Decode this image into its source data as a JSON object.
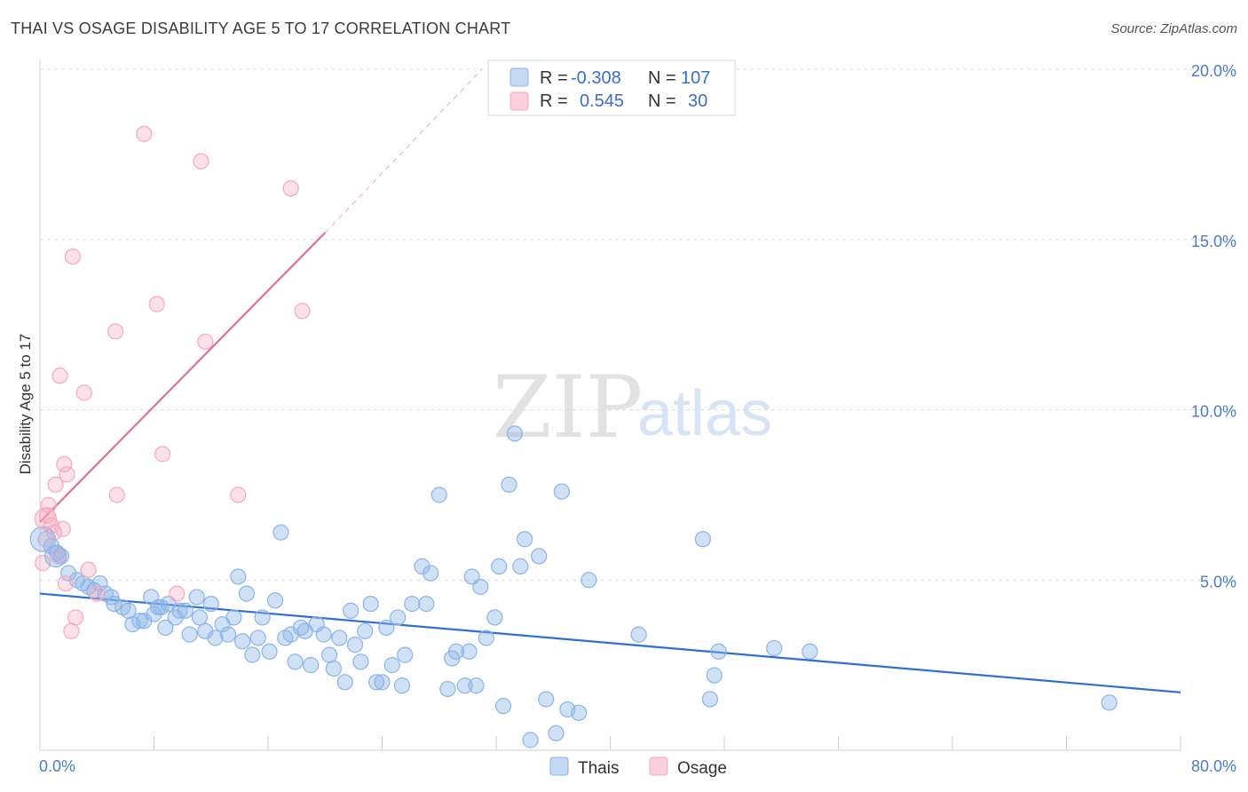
{
  "header": {
    "title": "THAI VS OSAGE DISABILITY AGE 5 TO 17 CORRELATION CHART",
    "source": "Source: ZipAtlas.com"
  },
  "watermark": {
    "zip": "ZIP",
    "atlas": "atlas"
  },
  "legend": {
    "r_label": "R =",
    "n_label": "N =",
    "items": [
      {
        "name": "Thais",
        "r": "-0.308",
        "n": "107",
        "color": "#8ab4e8"
      },
      {
        "name": "Osage",
        "r": "0.545",
        "n": "30",
        "color": "#f5a8c0"
      }
    ]
  },
  "chart_data": {
    "type": "scatter",
    "xlabel": "",
    "ylabel": "Disability Age 5 to 17",
    "xlim": [
      0,
      80
    ],
    "ylim": [
      0,
      20
    ],
    "x_tick_labels": [
      "0.0%",
      "80.0%"
    ],
    "y_ticks": [
      5,
      10,
      15,
      20
    ],
    "y_tick_labels": [
      "5.0%",
      "10.0%",
      "15.0%",
      "20.0%"
    ],
    "grid": true,
    "legend_position": "top-center",
    "series": [
      {
        "name": "Thais",
        "color": "#8ab4e8",
        "line_color": "#2f6fd1",
        "trend": {
          "x": [
            0,
            80
          ],
          "y": [
            4.6,
            1.7
          ]
        },
        "points": [
          [
            0.8,
            6.0
          ],
          [
            1.2,
            5.8
          ],
          [
            1.5,
            5.7
          ],
          [
            2.0,
            5.2
          ],
          [
            2.6,
            5.0
          ],
          [
            3.0,
            4.9
          ],
          [
            3.4,
            4.8
          ],
          [
            3.8,
            4.7
          ],
          [
            4.2,
            4.9
          ],
          [
            4.6,
            4.6
          ],
          [
            5.0,
            4.5
          ],
          [
            5.2,
            4.3
          ],
          [
            5.8,
            4.2
          ],
          [
            6.2,
            4.1
          ],
          [
            6.5,
            3.7
          ],
          [
            7.0,
            3.8
          ],
          [
            7.3,
            3.8
          ],
          [
            7.8,
            4.5
          ],
          [
            8.0,
            4.0
          ],
          [
            8.5,
            4.2
          ],
          [
            8.8,
            3.6
          ],
          [
            9.0,
            4.3
          ],
          [
            9.5,
            3.9
          ],
          [
            9.8,
            4.1
          ],
          [
            10.2,
            4.1
          ],
          [
            10.5,
            3.4
          ],
          [
            11.0,
            4.5
          ],
          [
            11.2,
            3.9
          ],
          [
            11.6,
            3.5
          ],
          [
            12.0,
            4.3
          ],
          [
            12.3,
            3.3
          ],
          [
            12.8,
            3.7
          ],
          [
            13.2,
            3.4
          ],
          [
            13.6,
            3.9
          ],
          [
            13.9,
            5.1
          ],
          [
            14.2,
            3.2
          ],
          [
            14.5,
            4.6
          ],
          [
            14.9,
            2.8
          ],
          [
            15.3,
            3.3
          ],
          [
            15.6,
            3.9
          ],
          [
            16.1,
            2.9
          ],
          [
            16.5,
            4.4
          ],
          [
            16.9,
            6.4
          ],
          [
            17.2,
            3.3
          ],
          [
            17.6,
            3.4
          ],
          [
            17.9,
            2.6
          ],
          [
            18.3,
            3.6
          ],
          [
            18.6,
            3.5
          ],
          [
            19.0,
            2.5
          ],
          [
            19.4,
            3.7
          ],
          [
            19.9,
            3.4
          ],
          [
            20.3,
            2.8
          ],
          [
            20.6,
            2.4
          ],
          [
            21.0,
            3.3
          ],
          [
            21.4,
            2.0
          ],
          [
            21.8,
            4.1
          ],
          [
            22.1,
            3.1
          ],
          [
            22.5,
            2.6
          ],
          [
            22.8,
            3.5
          ],
          [
            23.2,
            4.3
          ],
          [
            23.6,
            2.0
          ],
          [
            24.0,
            2.0
          ],
          [
            24.3,
            3.6
          ],
          [
            24.7,
            2.5
          ],
          [
            25.1,
            3.9
          ],
          [
            25.4,
            1.9
          ],
          [
            25.6,
            2.8
          ],
          [
            26.1,
            4.3
          ],
          [
            26.8,
            5.4
          ],
          [
            27.1,
            4.3
          ],
          [
            27.4,
            5.2
          ],
          [
            28.0,
            7.5
          ],
          [
            28.6,
            1.8
          ],
          [
            28.9,
            2.7
          ],
          [
            29.2,
            2.9
          ],
          [
            29.8,
            1.9
          ],
          [
            30.1,
            2.9
          ],
          [
            30.6,
            1.9
          ],
          [
            30.9,
            4.8
          ],
          [
            31.3,
            3.3
          ],
          [
            31.9,
            3.9
          ],
          [
            32.2,
            5.4
          ],
          [
            32.5,
            1.3
          ],
          [
            32.9,
            7.8
          ],
          [
            33.3,
            9.3
          ],
          [
            33.7,
            5.4
          ],
          [
            34.0,
            6.2
          ],
          [
            34.4,
            0.3
          ],
          [
            35.0,
            5.7
          ],
          [
            35.5,
            1.5
          ],
          [
            36.2,
            0.5
          ],
          [
            36.6,
            7.6
          ],
          [
            37.0,
            1.2
          ],
          [
            37.8,
            1.1
          ],
          [
            38.5,
            5.0
          ],
          [
            46.5,
            6.2
          ],
          [
            47.0,
            1.5
          ],
          [
            47.3,
            2.2
          ],
          [
            47.6,
            2.9
          ],
          [
            51.5,
            3.0
          ],
          [
            54.0,
            2.9
          ],
          [
            75.0,
            1.4
          ],
          [
            42.0,
            3.4
          ],
          [
            30.3,
            5.1
          ],
          [
            8.3,
            4.2
          ]
        ]
      },
      {
        "name": "Osage",
        "color": "#f5a8c0",
        "line_color": "#e06f9a",
        "trend": {
          "x": [
            0,
            20
          ],
          "y": [
            6.7,
            15.2
          ]
        },
        "trend_dashed": {
          "x": [
            20,
            31
          ],
          "y": [
            15.2,
            20.0
          ]
        },
        "points": [
          [
            0.2,
            5.5
          ],
          [
            0.4,
            6.2
          ],
          [
            0.5,
            6.9
          ],
          [
            0.6,
            7.2
          ],
          [
            0.8,
            6.6
          ],
          [
            1.0,
            6.4
          ],
          [
            1.1,
            7.8
          ],
          [
            1.3,
            5.7
          ],
          [
            1.4,
            11.0
          ],
          [
            1.6,
            6.5
          ],
          [
            1.7,
            8.4
          ],
          [
            1.9,
            8.1
          ],
          [
            2.2,
            3.5
          ],
          [
            2.3,
            14.5
          ],
          [
            2.5,
            3.9
          ],
          [
            3.1,
            10.5
          ],
          [
            3.4,
            5.3
          ],
          [
            4.0,
            4.6
          ],
          [
            5.3,
            12.3
          ],
          [
            5.4,
            7.5
          ],
          [
            7.3,
            18.1
          ],
          [
            8.2,
            13.1
          ],
          [
            8.6,
            8.7
          ],
          [
            9.6,
            4.6
          ],
          [
            11.3,
            17.3
          ],
          [
            11.6,
            12.0
          ],
          [
            13.9,
            7.5
          ],
          [
            17.6,
            16.5
          ],
          [
            18.4,
            12.9
          ],
          [
            1.8,
            4.9
          ]
        ]
      }
    ]
  }
}
